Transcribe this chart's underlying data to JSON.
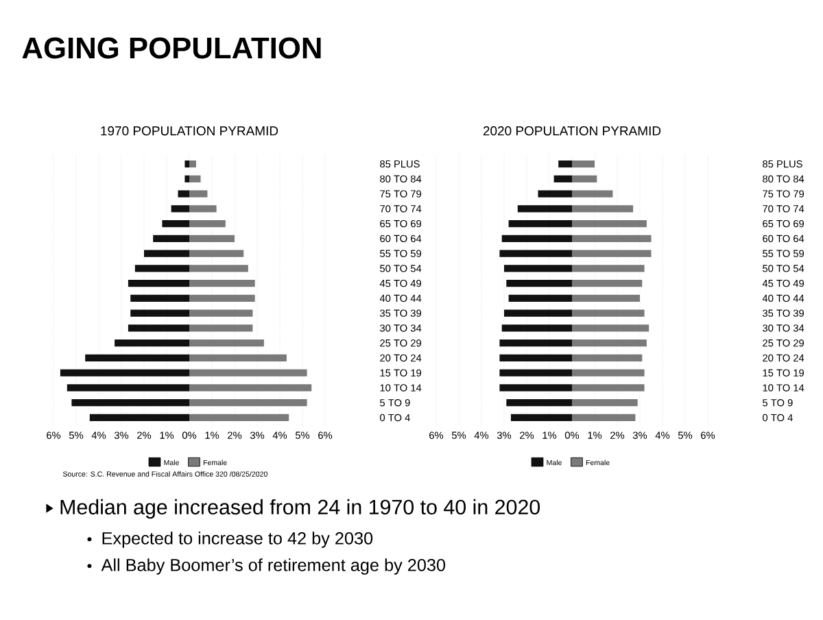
{
  "chart_data": [
    {
      "type": "bar",
      "orientation": "horizontal",
      "stacked": true,
      "title": "1970 POPULATION PYRAMID",
      "categories": [
        "85 PLUS",
        "80 TO 84",
        "75 TO 79",
        "70 TO 74",
        "65 TO 69",
        "60 TO 64",
        "55 TO 59",
        "50 TO 54",
        "45 TO 49",
        "40 TO 44",
        "35 TO 39",
        "30 TO 34",
        "25 TO 29",
        "20 TO 24",
        "15 TO 19",
        "10 TO 14",
        "5 TO 9",
        "0 TO 4"
      ],
      "series": [
        {
          "name": "Male",
          "color": "#111111",
          "values": [
            -0.2,
            -0.2,
            -0.5,
            -0.8,
            -1.2,
            -1.6,
            -2.0,
            -2.4,
            -2.7,
            -2.6,
            -2.6,
            -2.7,
            -3.3,
            -4.6,
            -5.7,
            -5.4,
            -5.2,
            -4.4
          ]
        },
        {
          "name": "Female",
          "color": "#7a7a7a",
          "values": [
            0.3,
            0.5,
            0.8,
            1.2,
            1.6,
            2.0,
            2.4,
            2.6,
            2.9,
            2.9,
            2.8,
            2.8,
            3.3,
            4.3,
            5.2,
            5.4,
            5.2,
            4.4
          ]
        }
      ],
      "xlim": [
        -6,
        6
      ],
      "xticks": [
        {
          "value": -6,
          "label": "6%"
        },
        {
          "value": -5,
          "label": "5%"
        },
        {
          "value": -4,
          "label": "4%"
        },
        {
          "value": -3,
          "label": "3%"
        },
        {
          "value": -2,
          "label": "2%"
        },
        {
          "value": -1,
          "label": "1%"
        },
        {
          "value": 0,
          "label": "0%"
        },
        {
          "value": 1,
          "label": "1%"
        },
        {
          "value": 2,
          "label": "2%"
        },
        {
          "value": 3,
          "label": "3%"
        },
        {
          "value": 4,
          "label": "4%"
        },
        {
          "value": 5,
          "label": "5%"
        },
        {
          "value": 6,
          "label": "6%"
        }
      ],
      "grid": "x",
      "legend": "bottom",
      "annotations": [
        "AGING POPULATION",
        "Source: S.C. Revenue and Fiscal Affairs Office 320 /08/25/2020",
        "Median age increased from 24 in 1970 to 40 in 2020",
        "Expected to increase to 42 by 2030",
        "All Baby Boomer’s of retirement age by 2030"
      ]
    },
    {
      "type": "bar",
      "orientation": "horizontal",
      "stacked": true,
      "title": "2020 POPULATION PYRAMID",
      "categories": [
        "85 PLUS",
        "80 TO 84",
        "75 TO 79",
        "70 TO 74",
        "65 TO 69",
        "60 TO 64",
        "55 TO 59",
        "50 TO 54",
        "45 TO 49",
        "40 TO 44",
        "35 TO 39",
        "30 TO 34",
        "25 TO 29",
        "20 TO 24",
        "15 TO 19",
        "10 TO 14",
        "5 TO 9",
        "0 TO 4"
      ],
      "series": [
        {
          "name": "Male",
          "color": "#111111",
          "values": [
            -0.6,
            -0.8,
            -1.5,
            -2.4,
            -2.8,
            -3.1,
            -3.2,
            -3.0,
            -2.9,
            -2.8,
            -3.0,
            -3.1,
            -3.2,
            -3.2,
            -3.2,
            -3.2,
            -2.9,
            -2.7
          ]
        },
        {
          "name": "Female",
          "color": "#7a7a7a",
          "values": [
            1.0,
            1.1,
            1.8,
            2.7,
            3.3,
            3.5,
            3.5,
            3.2,
            3.1,
            3.0,
            3.2,
            3.4,
            3.3,
            3.1,
            3.2,
            3.2,
            2.9,
            2.8
          ]
        }
      ],
      "xlim": [
        -6,
        6
      ],
      "xticks": [
        {
          "value": -6,
          "label": "6%"
        },
        {
          "value": -5,
          "label": "5%"
        },
        {
          "value": -4,
          "label": "4%"
        },
        {
          "value": -3,
          "label": "3%"
        },
        {
          "value": -2,
          "label": "2%"
        },
        {
          "value": -1,
          "label": "1%"
        },
        {
          "value": 0,
          "label": "0%"
        },
        {
          "value": 1,
          "label": "1%"
        },
        {
          "value": 2,
          "label": "2%"
        },
        {
          "value": 3,
          "label": "3%"
        },
        {
          "value": 4,
          "label": "4%"
        },
        {
          "value": 5,
          "label": "5%"
        },
        {
          "value": 6,
          "label": "6%"
        }
      ],
      "grid": "x",
      "legend": "bottom"
    }
  ]
}
